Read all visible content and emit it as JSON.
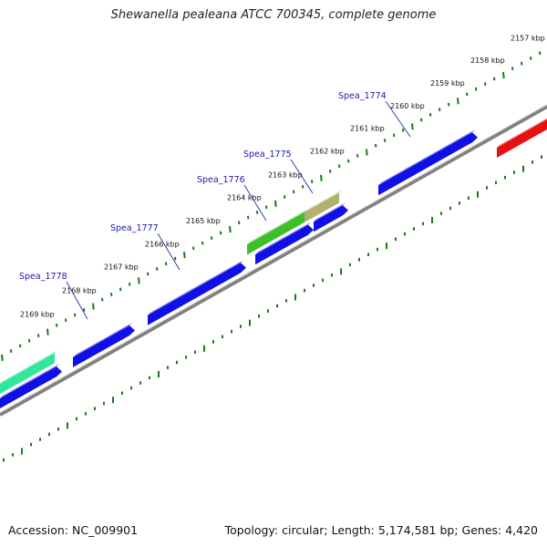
{
  "header": {
    "title": "Shewanella pealeana ATCC 700345, complete genome"
  },
  "footer": {
    "accession": "Accession: NC_009901",
    "summary": "Topology: circular; Length: 5,174,581 bp; Genes: 4,420"
  },
  "map": {
    "ticks": [
      {
        "label": "2157 kbp",
        "pos": 2157
      },
      {
        "label": "2158 kbp",
        "pos": 2158
      },
      {
        "label": "2159 kbp",
        "pos": 2159
      },
      {
        "label": "2160 kbp",
        "pos": 2160
      },
      {
        "label": "2161 kbp",
        "pos": 2161
      },
      {
        "label": "2162 kbp",
        "pos": 2162
      },
      {
        "label": "2163 kbp",
        "pos": 2163
      },
      {
        "label": "2164 kbp",
        "pos": 2164
      },
      {
        "label": "2165 kbp",
        "pos": 2165
      },
      {
        "label": "2166 kbp",
        "pos": 2166
      },
      {
        "label": "2167 kbp",
        "pos": 2167
      },
      {
        "label": "2168 kbp",
        "pos": 2168
      },
      {
        "label": "2169 kbp",
        "pos": 2169
      }
    ],
    "gene_labels": [
      {
        "label": "Spea_1774",
        "pos": 2159.7
      },
      {
        "label": "Spea_1775",
        "pos": 2162.45
      },
      {
        "label": "Spea_1776",
        "pos": 2163.45
      },
      {
        "label": "Spea_1777",
        "pos": 2165.5
      },
      {
        "label": "Spea_1778",
        "pos": 2167.9
      }
    ],
    "colors": {
      "backbone": "#808080",
      "tick": "#1a7a1a",
      "cds_blue": "#1010e6",
      "cds_red": "#e61010",
      "cds_green": "#3cbf28",
      "cds_olive": "#b4b070",
      "cds_teal": "#32e6a0",
      "label": "#1a1aa6"
    }
  }
}
